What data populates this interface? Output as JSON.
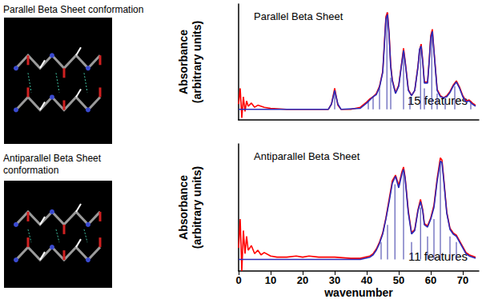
{
  "images": [
    {
      "label": "Parallel Beta Sheet conformation"
    },
    {
      "label": "Antiparallel Beta Sheet\nconformation"
    }
  ],
  "chart_data": [
    {
      "type": "line",
      "title": "Parallel Beta Sheet",
      "ylabel": "Absorbance\n(arbitrary units)",
      "annotation": "15 features",
      "xlim": [
        0,
        75
      ],
      "ylim": [
        -0.1,
        1.0
      ],
      "tick_labels": false,
      "series": [
        {
          "type": "bar",
          "color": "#3a3aa8",
          "x": [
            30,
            40.5,
            42,
            44,
            46.3,
            47.5,
            51.5,
            53.5,
            56.8,
            58,
            60.3,
            62,
            64.5,
            67.5,
            72.5
          ],
          "values": [
            0.18,
            0.08,
            0.12,
            0.2,
            0.92,
            0.3,
            0.55,
            0.12,
            0.6,
            0.2,
            0.72,
            0.15,
            0.1,
            0.22,
            0.08
          ]
        },
        {
          "type": "line",
          "color": "#ff0000",
          "x": [
            0,
            0.5,
            1,
            1.5,
            2,
            2.5,
            3,
            4,
            5,
            6,
            8,
            10,
            15,
            20,
            25,
            28,
            29,
            30,
            31,
            32,
            35,
            38,
            40,
            41,
            42,
            43,
            44,
            45,
            45.5,
            46,
            46.5,
            47,
            47.5,
            48,
            49,
            50,
            51,
            51.5,
            52,
            53,
            54,
            55,
            56,
            56.5,
            57,
            57.5,
            58,
            59,
            59.5,
            60,
            60.5,
            61,
            62,
            63,
            64,
            65,
            66,
            67,
            68,
            69,
            70,
            71,
            72,
            73,
            74
          ],
          "values": [
            0.05,
            0.2,
            -0.08,
            0.12,
            -0.02,
            0.08,
            0.03,
            0.06,
            0.02,
            0.04,
            0.02,
            0.01,
            0.0,
            0.0,
            0.0,
            0.0,
            0.05,
            0.2,
            0.04,
            0.0,
            0.0,
            0.02,
            0.07,
            0.1,
            0.12,
            0.15,
            0.22,
            0.36,
            0.62,
            0.88,
            0.92,
            0.72,
            0.42,
            0.28,
            0.16,
            0.23,
            0.46,
            0.58,
            0.46,
            0.19,
            0.13,
            0.18,
            0.41,
            0.56,
            0.62,
            0.46,
            0.26,
            0.26,
            0.46,
            0.7,
            0.76,
            0.56,
            0.19,
            0.13,
            0.11,
            0.13,
            0.17,
            0.23,
            0.27,
            0.21,
            0.13,
            0.08,
            0.09,
            0.06,
            0.04
          ]
        },
        {
          "type": "line",
          "color": "#2b2bb8",
          "x": [
            0,
            28,
            29,
            30,
            31,
            32,
            38,
            40,
            41,
            42,
            43,
            44,
            45,
            45.5,
            46,
            46.5,
            47,
            47.5,
            48,
            49,
            50,
            51,
            51.5,
            52,
            53,
            54,
            55,
            56,
            56.5,
            57,
            57.5,
            58,
            59,
            59.5,
            60,
            60.5,
            61,
            62,
            63,
            64,
            65,
            66,
            67,
            68,
            69,
            70,
            71,
            72,
            73,
            74
          ],
          "values": [
            0,
            0,
            0.05,
            0.18,
            0.05,
            0,
            0.01,
            0.06,
            0.09,
            0.12,
            0.14,
            0.21,
            0.35,
            0.6,
            0.86,
            0.9,
            0.7,
            0.4,
            0.27,
            0.15,
            0.22,
            0.45,
            0.56,
            0.45,
            0.18,
            0.13,
            0.18,
            0.4,
            0.57,
            0.6,
            0.45,
            0.25,
            0.25,
            0.45,
            0.68,
            0.74,
            0.55,
            0.18,
            0.12,
            0.11,
            0.12,
            0.16,
            0.22,
            0.26,
            0.2,
            0.12,
            0.07,
            0.08,
            0.05,
            0.03
          ]
        }
      ]
    },
    {
      "type": "line",
      "title": "Antiparallel Beta Sheet",
      "ylabel": "Absorbance\n(arbitrary units)",
      "xlabel": "wavenumber",
      "annotation": "11 features",
      "xlim": [
        0,
        75
      ],
      "ylim": [
        -0.1,
        1.0
      ],
      "xticks": [
        0,
        10,
        20,
        30,
        40,
        50,
        60,
        70
      ],
      "tick_labels": "x",
      "series": [
        {
          "type": "bar",
          "color": "#3a3aa8",
          "x": [
            44.5,
            46.5,
            48.8,
            51.5,
            54,
            56.8,
            59,
            61,
            63,
            66,
            68
          ],
          "values": [
            0.15,
            0.3,
            0.65,
            0.75,
            0.15,
            0.45,
            0.2,
            0.35,
            0.85,
            0.2,
            0.15
          ]
        },
        {
          "type": "line",
          "color": "#ff0000",
          "x": [
            0,
            0.5,
            1,
            1.5,
            2,
            2.5,
            3,
            4,
            5,
            6,
            7,
            8,
            10,
            12,
            15,
            18,
            20,
            22,
            25,
            30,
            35,
            38,
            41,
            42,
            43,
            44,
            45,
            46,
            47,
            48,
            49,
            50,
            51,
            51.5,
            52,
            53,
            54,
            55,
            56,
            56.8,
            57.5,
            58,
            59,
            60,
            61,
            62,
            63,
            63.5,
            64,
            65,
            66,
            67,
            68,
            69,
            70,
            71,
            72,
            74
          ],
          "values": [
            0.1,
            0.35,
            -0.1,
            0.25,
            0.05,
            0.2,
            0.08,
            0.12,
            0.05,
            0.08,
            0.04,
            0.06,
            0.03,
            0.02,
            0.02,
            0.03,
            0.02,
            0.03,
            0.02,
            0.02,
            0.01,
            0.01,
            0.03,
            0.05,
            0.09,
            0.15,
            0.23,
            0.36,
            0.52,
            0.68,
            0.73,
            0.64,
            0.76,
            0.8,
            0.71,
            0.42,
            0.23,
            0.26,
            0.43,
            0.52,
            0.43,
            0.31,
            0.29,
            0.36,
            0.47,
            0.7,
            0.88,
            0.86,
            0.72,
            0.41,
            0.27,
            0.23,
            0.21,
            0.16,
            0.11,
            0.06,
            0.04,
            0.02
          ]
        },
        {
          "type": "line",
          "color": "#2b2bb8",
          "x": [
            0,
            38,
            41,
            42,
            43,
            44,
            45,
            46,
            47,
            48,
            49,
            50,
            51,
            51.5,
            52,
            53,
            54,
            55,
            56,
            56.8,
            57.5,
            58,
            59,
            60,
            61,
            62,
            63,
            63.5,
            64,
            65,
            66,
            67,
            68,
            69,
            70,
            71,
            72,
            74
          ],
          "values": [
            0,
            0,
            0.02,
            0.04,
            0.08,
            0.14,
            0.22,
            0.35,
            0.5,
            0.66,
            0.72,
            0.62,
            0.74,
            0.78,
            0.7,
            0.4,
            0.22,
            0.25,
            0.42,
            0.5,
            0.42,
            0.3,
            0.28,
            0.35,
            0.45,
            0.68,
            0.85,
            0.84,
            0.7,
            0.4,
            0.26,
            0.22,
            0.2,
            0.15,
            0.1,
            0.05,
            0.03,
            0.01
          ]
        }
      ]
    }
  ]
}
